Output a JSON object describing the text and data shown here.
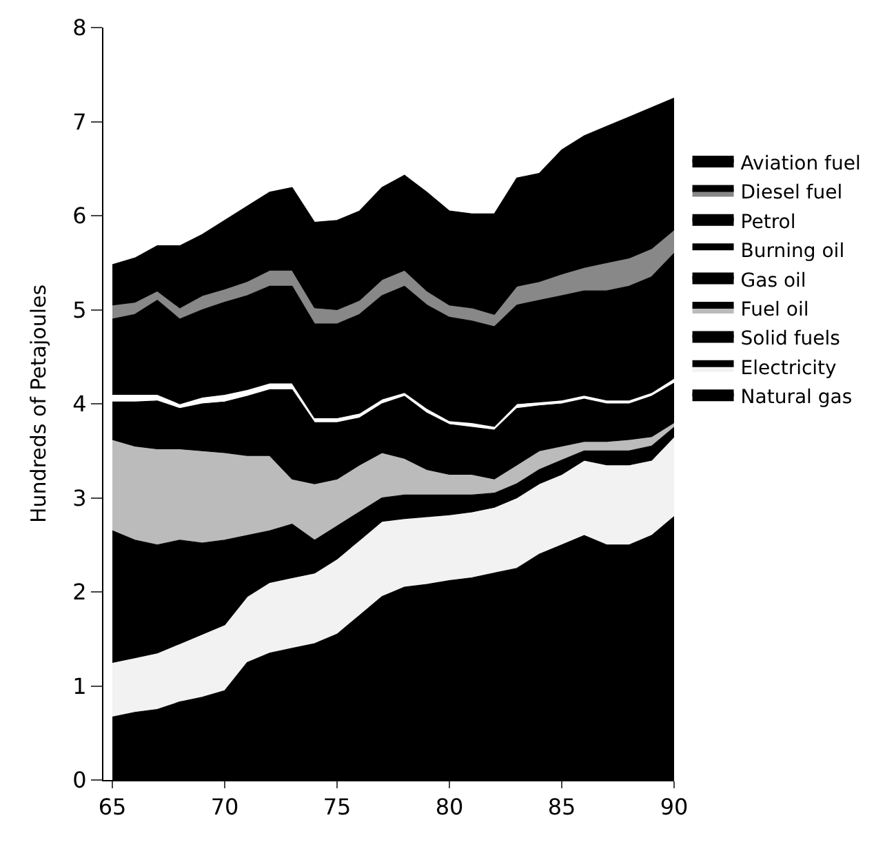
{
  "chart_data": {
    "type": "area",
    "stacked": true,
    "ylabel": "Hundreds of Petajoules",
    "x": [
      65,
      66,
      67,
      68,
      69,
      70,
      71,
      72,
      73,
      74,
      75,
      76,
      77,
      78,
      79,
      80,
      81,
      82,
      83,
      84,
      85,
      86,
      87,
      88,
      89,
      90
    ],
    "xlim": [
      64.6,
      90
    ],
    "xticks": [
      65,
      70,
      75,
      80,
      85,
      90
    ],
    "ylim": [
      0,
      8
    ],
    "yticks": [
      0,
      1,
      2,
      3,
      4,
      5,
      6,
      7,
      8
    ],
    "legend": "right",
    "series": [
      {
        "name": "Natural gas",
        "color": "#000000",
        "values": [
          0.67,
          0.72,
          0.75,
          0.83,
          0.88,
          0.95,
          1.25,
          1.35,
          1.4,
          1.45,
          1.55,
          1.75,
          1.95,
          2.05,
          2.08,
          2.12,
          2.15,
          2.2,
          2.25,
          2.4,
          2.5,
          2.6,
          2.5,
          2.5,
          2.6,
          2.8
        ]
      },
      {
        "name": "Electricity",
        "color": "#f2f2f2",
        "values": [
          0.58,
          0.58,
          0.6,
          0.62,
          0.67,
          0.7,
          0.7,
          0.75,
          0.75,
          0.75,
          0.8,
          0.8,
          0.8,
          0.73,
          0.72,
          0.7,
          0.7,
          0.7,
          0.75,
          0.75,
          0.75,
          0.8,
          0.85,
          0.85,
          0.8,
          0.85
        ]
      },
      {
        "name": "Solid fuels",
        "color": "#000000",
        "values": [
          1.4,
          1.25,
          1.15,
          1.1,
          0.97,
          0.9,
          0.65,
          0.55,
          0.57,
          0.35,
          0.35,
          0.3,
          0.25,
          0.25,
          0.23,
          0.21,
          0.18,
          0.15,
          0.15,
          0.15,
          0.15,
          0.1,
          0.15,
          0.15,
          0.15,
          0.1
        ]
      },
      {
        "name": "Fuel oil",
        "color": "#bbbbbb",
        "values": [
          0.97,
          1.0,
          1.02,
          0.97,
          0.98,
          0.93,
          0.85,
          0.8,
          0.48,
          0.6,
          0.5,
          0.5,
          0.48,
          0.39,
          0.27,
          0.22,
          0.22,
          0.15,
          0.2,
          0.2,
          0.15,
          0.1,
          0.1,
          0.12,
          0.1,
          0.05
        ]
      },
      {
        "name": "Gas oil",
        "color": "#000000",
        "values": [
          0.4,
          0.47,
          0.51,
          0.43,
          0.5,
          0.54,
          0.63,
          0.7,
          0.95,
          0.65,
          0.6,
          0.5,
          0.52,
          0.66,
          0.6,
          0.53,
          0.5,
          0.52,
          0.6,
          0.48,
          0.45,
          0.45,
          0.4,
          0.38,
          0.43,
          0.42
        ]
      },
      {
        "name": "Burning oil",
        "color": "#ffffff",
        "values": [
          0.08,
          0.08,
          0.07,
          0.05,
          0.07,
          0.08,
          0.07,
          0.07,
          0.07,
          0.05,
          0.05,
          0.05,
          0.05,
          0.04,
          0.05,
          0.04,
          0.05,
          0.04,
          0.05,
          0.04,
          0.04,
          0.04,
          0.04,
          0.04,
          0.04,
          0.05
        ]
      },
      {
        "name": "Petrol",
        "color": "#000000",
        "values": [
          0.8,
          0.85,
          1.0,
          0.9,
          0.93,
          0.98,
          1.0,
          1.03,
          1.03,
          1.0,
          1.0,
          1.05,
          1.1,
          1.13,
          1.1,
          1.1,
          1.08,
          1.06,
          1.05,
          1.08,
          1.11,
          1.11,
          1.16,
          1.21,
          1.23,
          1.33
        ]
      },
      {
        "name": "Diesel fuel",
        "color": "#888888",
        "values": [
          0.15,
          0.13,
          0.1,
          0.12,
          0.15,
          0.14,
          0.15,
          0.17,
          0.17,
          0.17,
          0.15,
          0.15,
          0.17,
          0.17,
          0.15,
          0.13,
          0.14,
          0.13,
          0.2,
          0.2,
          0.23,
          0.25,
          0.3,
          0.3,
          0.3,
          0.25
        ]
      },
      {
        "name": "Aviation fuel",
        "color": "#000000",
        "values": [
          0.43,
          0.47,
          0.48,
          0.66,
          0.65,
          0.73,
          0.8,
          0.83,
          0.88,
          0.91,
          0.95,
          0.95,
          0.98,
          1.01,
          1.05,
          1.0,
          1.0,
          1.07,
          1.15,
          1.15,
          1.32,
          1.4,
          1.45,
          1.5,
          1.5,
          1.4
        ]
      }
    ]
  }
}
